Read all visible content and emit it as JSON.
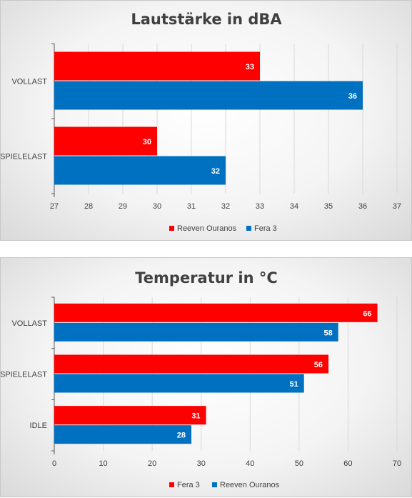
{
  "chart_data": [
    {
      "type": "bar",
      "orientation": "horizontal",
      "title": "Lautstärke in dBA",
      "categories": [
        "VOLLAST",
        "SPIELELAST"
      ],
      "series": [
        {
          "name": "Reeven Ouranos",
          "color": "#ff0000",
          "values": [
            33,
            30
          ]
        },
        {
          "name": "Fera 3",
          "color": "#0070c0",
          "values": [
            36,
            32
          ]
        }
      ],
      "xlim": [
        27,
        37
      ],
      "ticks": [
        27,
        28,
        29,
        30,
        31,
        32,
        33,
        34,
        35,
        36,
        37
      ],
      "grid": true,
      "legend": "bottom"
    },
    {
      "type": "bar",
      "orientation": "horizontal",
      "title": "Temperatur in °C",
      "categories": [
        "VOLLAST",
        "SPIELELAST",
        "IDLE"
      ],
      "series": [
        {
          "name": "Fera 3",
          "color": "#ff0000",
          "values": [
            66,
            56,
            31
          ]
        },
        {
          "name": "Reeven Ouranos",
          "color": "#0070c0",
          "values": [
            58,
            51,
            28
          ]
        }
      ],
      "xlim": [
        0,
        70
      ],
      "ticks": [
        0,
        10,
        20,
        30,
        40,
        50,
        60,
        70
      ],
      "grid": true,
      "legend": "bottom"
    }
  ]
}
